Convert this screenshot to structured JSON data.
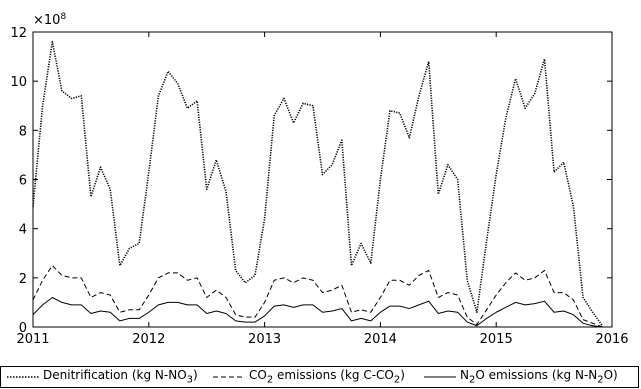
{
  "chart_data": {
    "type": "line",
    "title": "",
    "xlabel": "",
    "ylabel": "",
    "y_multiplier_label": "×10",
    "y_multiplier_exponent": "8",
    "xlim": [
      2011,
      2016
    ],
    "ylim": [
      0,
      12
    ],
    "x_tick_labels": [
      "2011",
      "2012",
      "2013",
      "2014",
      "2015",
      "2016"
    ],
    "y_tick_labels": [
      "0",
      "2",
      "4",
      "6",
      "8",
      "10",
      "12"
    ],
    "grid": false,
    "legend_position": "bottom",
    "x": [
      2011.0,
      2011.083,
      2011.167,
      2011.25,
      2011.333,
      2011.417,
      2011.5,
      2011.583,
      2011.667,
      2011.75,
      2011.833,
      2011.917,
      2012.0,
      2012.083,
      2012.167,
      2012.25,
      2012.333,
      2012.417,
      2012.5,
      2012.583,
      2012.667,
      2012.75,
      2012.833,
      2012.917,
      2013.0,
      2013.083,
      2013.167,
      2013.25,
      2013.333,
      2013.417,
      2013.5,
      2013.583,
      2013.667,
      2013.75,
      2013.833,
      2013.917,
      2014.0,
      2014.083,
      2014.167,
      2014.25,
      2014.333,
      2014.417,
      2014.5,
      2014.583,
      2014.667,
      2014.75,
      2014.833,
      2014.917,
      2015.0,
      2015.083,
      2015.167,
      2015.25,
      2015.333,
      2015.417,
      2015.5,
      2015.583,
      2015.667,
      2015.75,
      2015.833,
      2015.917
    ],
    "series": [
      {
        "name": "Denitrification (kg N-NO3)",
        "style": "dotted",
        "values": [
          4.9,
          9.0,
          11.6,
          9.6,
          9.3,
          9.4,
          5.3,
          6.5,
          5.6,
          2.5,
          3.2,
          3.4,
          6.3,
          9.4,
          10.4,
          9.9,
          8.9,
          9.2,
          5.6,
          6.8,
          5.5,
          2.3,
          1.8,
          2.1,
          4.4,
          8.6,
          9.3,
          8.3,
          9.1,
          9.0,
          6.2,
          6.6,
          7.6,
          2.5,
          3.4,
          2.6,
          6.0,
          8.8,
          8.7,
          7.7,
          9.4,
          10.8,
          5.4,
          6.6,
          6.0,
          1.9,
          0.6,
          3.5,
          6.2,
          8.5,
          10.1,
          8.9,
          9.5,
          10.9,
          6.3,
          6.7,
          4.9,
          1.2,
          0.6,
          0.05
        ]
      },
      {
        "name": "CO2 emissions (kg C-CO2)",
        "style": "dashed",
        "values": [
          1.1,
          1.9,
          2.5,
          2.1,
          2.0,
          2.0,
          1.2,
          1.4,
          1.3,
          0.6,
          0.7,
          0.7,
          1.3,
          2.0,
          2.2,
          2.2,
          1.9,
          2.0,
          1.2,
          1.5,
          1.2,
          0.5,
          0.4,
          0.4,
          1.0,
          1.9,
          2.0,
          1.8,
          2.0,
          1.9,
          1.4,
          1.5,
          1.7,
          0.6,
          0.7,
          0.6,
          1.2,
          1.9,
          1.9,
          1.7,
          2.1,
          2.3,
          1.2,
          1.4,
          1.3,
          0.4,
          0.1,
          0.7,
          1.3,
          1.8,
          2.2,
          1.9,
          2.0,
          2.3,
          1.4,
          1.4,
          1.1,
          0.3,
          0.15,
          0.01
        ]
      },
      {
        "name": "N2O emissions (kg N-N2O)",
        "style": "solid",
        "values": [
          0.5,
          0.9,
          1.2,
          1.0,
          0.9,
          0.9,
          0.55,
          0.65,
          0.6,
          0.25,
          0.35,
          0.35,
          0.6,
          0.9,
          1.0,
          1.0,
          0.9,
          0.9,
          0.55,
          0.65,
          0.55,
          0.25,
          0.2,
          0.2,
          0.45,
          0.85,
          0.9,
          0.8,
          0.9,
          0.9,
          0.6,
          0.65,
          0.75,
          0.25,
          0.35,
          0.25,
          0.6,
          0.85,
          0.85,
          0.75,
          0.9,
          1.05,
          0.55,
          0.65,
          0.6,
          0.2,
          0.05,
          0.35,
          0.6,
          0.8,
          1.0,
          0.9,
          0.95,
          1.05,
          0.6,
          0.65,
          0.5,
          0.15,
          0.05,
          0.0
        ]
      }
    ]
  },
  "legend": {
    "items": [
      {
        "prefix": "Denitrification (kg N-NO",
        "sub": "3",
        "suffix": ")"
      },
      {
        "prefix": "CO",
        "sub": "2",
        "suffix": " emissions (kg C-CO",
        "sub2": "2",
        "suffix2": ")"
      },
      {
        "prefix": "N",
        "sub": "2",
        "suffix": "O emissions (kg N-N",
        "sub2": "2",
        "suffix2": "O)"
      }
    ]
  }
}
